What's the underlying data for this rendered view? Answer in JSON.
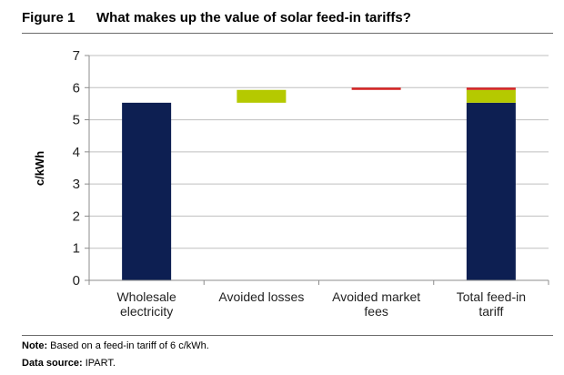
{
  "figure": {
    "number": "Figure 1",
    "title": "What makes up the value of solar feed-in tariffs?"
  },
  "notes": {
    "note_label": "Note:",
    "note_text": "Based on a feed-in tariff of 6 c/kWh.",
    "source_label": "Data source:",
    "source_text": "IPART."
  },
  "colors": {
    "wholesale": "#0d1f52",
    "losses": "#b5c900",
    "market_fees": "#d42020",
    "grid": "#bfbfbf",
    "axis": "#8c8c8c"
  },
  "chart_data": {
    "type": "bar",
    "subtype": "waterfall-stacked",
    "title": "What makes up the value of solar feed-in tariffs?",
    "xlabel": "",
    "ylabel": "c/kWh",
    "ylim": [
      0,
      7
    ],
    "yticks": [
      0,
      1,
      2,
      3,
      4,
      5,
      6,
      7
    ],
    "grid": true,
    "legend": "none",
    "categories": [
      "Wholesale electricity",
      "Avoided losses",
      "Avoided market fees",
      "Total feed-in tariff"
    ],
    "category_lines": [
      [
        "Wholesale",
        "electricity"
      ],
      [
        "Avoided losses"
      ],
      [
        "Avoided market",
        "fees"
      ],
      [
        "Total feed-in",
        "tariff"
      ]
    ],
    "components": [
      {
        "name": "Wholesale electricity",
        "value": 5.53,
        "color_key": "wholesale"
      },
      {
        "name": "Avoided losses",
        "value": 0.4,
        "color_key": "losses"
      },
      {
        "name": "Avoided market fees",
        "value": 0.07,
        "color_key": "market_fees"
      }
    ],
    "bars": [
      {
        "category": "Wholesale electricity",
        "segments": [
          {
            "component": 0,
            "from": 0,
            "to": 5.53
          }
        ]
      },
      {
        "category": "Avoided losses",
        "segments": [
          {
            "component": 1,
            "from": 5.53,
            "to": 5.93
          }
        ]
      },
      {
        "category": "Avoided market fees",
        "segments": [
          {
            "component": 2,
            "from": 5.93,
            "to": 6.0
          }
        ]
      },
      {
        "category": "Total feed-in tariff",
        "segments": [
          {
            "component": 0,
            "from": 0,
            "to": 5.53
          },
          {
            "component": 1,
            "from": 5.53,
            "to": 5.93
          },
          {
            "component": 2,
            "from": 5.93,
            "to": 6.0
          }
        ]
      }
    ]
  }
}
